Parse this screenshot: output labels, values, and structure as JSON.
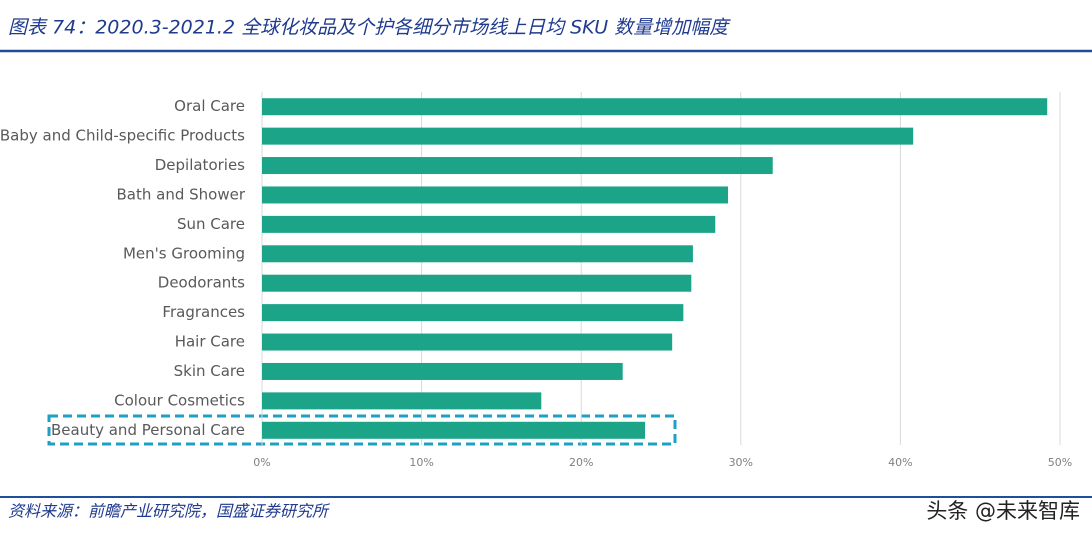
{
  "chart_data": {
    "type": "bar",
    "orientation": "horizontal",
    "title": "图表 74：2020.3-2021.2 全球化妆品及个护各细分市场线上日均 SKU 数量增加幅度",
    "source": "资料来源：前瞻产业研究院，国盛证券研究所",
    "watermark": "头条 @未来智库",
    "categories": [
      "Oral Care",
      "Baby and Child-specific Products",
      "Depilatories",
      "Bath and Shower",
      "Sun Care",
      "Men's Grooming",
      "Deodorants",
      "Fragrances",
      "Hair Care",
      "Skin Care",
      "Colour Cosmetics",
      "Beauty and Personal Care"
    ],
    "values": [
      49.2,
      40.8,
      32.0,
      29.2,
      28.4,
      27.0,
      26.9,
      26.4,
      25.7,
      22.6,
      17.5,
      24.0
    ],
    "color": "#1ba487",
    "xlim": [
      0,
      50
    ],
    "xticks": [
      {
        "value": 0,
        "label": "0%"
      },
      {
        "value": 10,
        "label": "10%"
      },
      {
        "value": 20,
        "label": "20%"
      },
      {
        "value": 30,
        "label": "30%"
      },
      {
        "value": 40,
        "label": "40%"
      },
      {
        "value": 50,
        "label": "50%"
      }
    ],
    "grid": true
  }
}
